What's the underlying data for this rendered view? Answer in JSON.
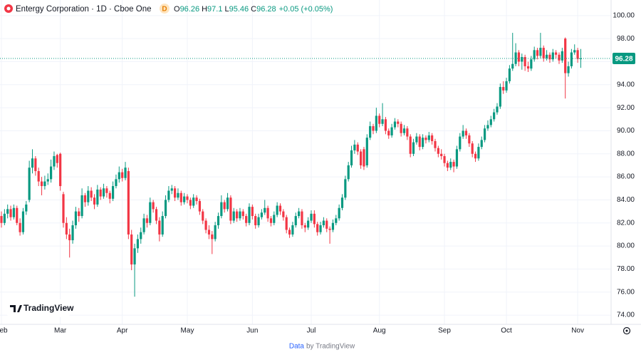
{
  "header": {
    "title": "Entergy Corporation · 1D · Cboe One",
    "badge": "D",
    "labels": [
      "O",
      "H",
      "L",
      "C"
    ],
    "change": "+0.05 (+0.05%)"
  },
  "logo": "TradingView",
  "footer": {
    "link": "Data",
    "text": "by TradingView"
  },
  "chart_data": {
    "type": "candlestick",
    "up_color": "#089981",
    "down_color": "#f23645",
    "grid": true,
    "ylim": [
      73.2,
      101.35
    ],
    "yticks": [
      {
        "value": 74,
        "label": "74.00"
      },
      {
        "value": 76,
        "label": "76.00"
      },
      {
        "value": 78,
        "label": "78.00"
      },
      {
        "value": 80,
        "label": "80.00"
      },
      {
        "value": 82,
        "label": "82.00"
      },
      {
        "value": 84,
        "label": "84.00"
      },
      {
        "value": 86,
        "label": "86.00"
      },
      {
        "value": 88,
        "label": "88.00"
      },
      {
        "value": 90,
        "label": "90.00"
      },
      {
        "value": 92,
        "label": "92.00"
      },
      {
        "value": 94,
        "label": "94.00"
      },
      {
        "value": 96,
        "label": "96.00"
      },
      {
        "value": 98,
        "label": "98.00"
      },
      {
        "value": 100,
        "label": "100.00"
      }
    ],
    "categories": [
      "Feb",
      null,
      null,
      null,
      null,
      null,
      null,
      null,
      null,
      null,
      null,
      null,
      null,
      null,
      null,
      null,
      null,
      null,
      null,
      "Mar",
      null,
      null,
      null,
      null,
      null,
      null,
      null,
      null,
      null,
      null,
      null,
      null,
      null,
      null,
      null,
      null,
      null,
      null,
      null,
      "Apr",
      null,
      null,
      null,
      null,
      null,
      null,
      null,
      null,
      null,
      null,
      null,
      null,
      null,
      null,
      null,
      null,
      null,
      null,
      null,
      null,
      "May",
      null,
      null,
      null,
      null,
      null,
      null,
      null,
      null,
      null,
      null,
      null,
      null,
      null,
      null,
      null,
      null,
      null,
      null,
      null,
      null,
      "Jun",
      null,
      null,
      null,
      null,
      null,
      null,
      null,
      null,
      null,
      null,
      null,
      null,
      null,
      null,
      null,
      null,
      null,
      null,
      "Jul",
      null,
      null,
      null,
      null,
      null,
      null,
      null,
      null,
      null,
      null,
      null,
      null,
      null,
      null,
      null,
      null,
      null,
      null,
      null,
      null,
      null,
      "Aug",
      null,
      null,
      null,
      null,
      null,
      null,
      null,
      null,
      null,
      null,
      null,
      null,
      null,
      null,
      null,
      null,
      null,
      null,
      null,
      null,
      "Sep",
      null,
      null,
      null,
      null,
      null,
      null,
      null,
      null,
      null,
      null,
      null,
      null,
      null,
      null,
      null,
      null,
      null,
      null,
      null,
      "Oct",
      null,
      null,
      null,
      null,
      null,
      null,
      null,
      null,
      null,
      null,
      null,
      null,
      null,
      null,
      null,
      null,
      null,
      null,
      null,
      null,
      null,
      null,
      "Nov",
      null
    ],
    "ohlc": [
      [
        82.6,
        83.0,
        81.6,
        82.0
      ],
      [
        82.0,
        83.2,
        81.8,
        82.8
      ],
      [
        82.8,
        83.6,
        82.4,
        83.2
      ],
      [
        83.2,
        83.5,
        82.2,
        82.5
      ],
      [
        82.5,
        83.6,
        82.3,
        83.3
      ],
      [
        83.3,
        83.5,
        81.8,
        82.0
      ],
      [
        82.0,
        82.4,
        80.9,
        81.2
      ],
      [
        81.2,
        83.3,
        81.0,
        83.0
      ],
      [
        83.0,
        83.9,
        82.7,
        83.6
      ],
      [
        84.0,
        87.4,
        83.8,
        86.8
      ],
      [
        86.8,
        88.4,
        86.3,
        87.6
      ],
      [
        87.6,
        87.8,
        86.1,
        86.5
      ],
      [
        86.5,
        86.8,
        85.2,
        85.6
      ],
      [
        85.6,
        86.0,
        84.4,
        85.2
      ],
      [
        85.2,
        86.1,
        84.9,
        85.6
      ],
      [
        85.6,
        86.3,
        85.3,
        85.8
      ],
      [
        85.8,
        87.5,
        85.5,
        86.9
      ],
      [
        86.9,
        88.2,
        86.6,
        87.8
      ],
      [
        87.9,
        88.0,
        86.8,
        87.2
      ],
      [
        88.0,
        88.1,
        84.8,
        85.2
      ],
      [
        84.5,
        84.7,
        81.6,
        82.0
      ],
      [
        82.0,
        82.5,
        80.6,
        81.0
      ],
      [
        81.0,
        81.5,
        79.0,
        80.5
      ],
      [
        80.5,
        82.2,
        80.2,
        81.8
      ],
      [
        81.8,
        83.4,
        81.5,
        83.0
      ],
      [
        83.0,
        83.3,
        82.1,
        82.6
      ],
      [
        82.6,
        85.0,
        82.4,
        84.4
      ],
      [
        84.4,
        84.6,
        83.4,
        83.8
      ],
      [
        83.8,
        85.2,
        83.5,
        84.8
      ],
      [
        84.8,
        85.1,
        83.9,
        84.2
      ],
      [
        84.2,
        84.5,
        83.2,
        83.6
      ],
      [
        83.6,
        85.3,
        83.4,
        84.9
      ],
      [
        84.9,
        85.1,
        84.0,
        84.3
      ],
      [
        84.3,
        85.4,
        84.1,
        85.0
      ],
      [
        85.0,
        85.2,
        84.2,
        84.6
      ],
      [
        84.6,
        84.8,
        83.7,
        84.1
      ],
      [
        84.1,
        85.6,
        83.9,
        85.2
      ],
      [
        85.2,
        86.2,
        85.0,
        85.8
      ],
      [
        85.8,
        86.9,
        85.5,
        86.4
      ],
      [
        86.4,
        86.7,
        85.6,
        85.9
      ],
      [
        85.9,
        87.3,
        85.7,
        86.8
      ],
      [
        86.5,
        86.8,
        80.6,
        81.0
      ],
      [
        81.0,
        81.4,
        77.9,
        78.4
      ],
      [
        78.4,
        80.2,
        75.6,
        79.8
      ],
      [
        79.8,
        81.0,
        79.4,
        80.6
      ],
      [
        80.6,
        81.6,
        80.2,
        81.2
      ],
      [
        81.2,
        82.8,
        81.0,
        82.4
      ],
      [
        82.4,
        82.7,
        81.6,
        82.0
      ],
      [
        82.0,
        84.2,
        81.8,
        83.8
      ],
      [
        83.8,
        84.0,
        82.9,
        83.2
      ],
      [
        83.2,
        83.4,
        81.9,
        82.2
      ],
      [
        82.2,
        82.5,
        80.4,
        81.0
      ],
      [
        81.0,
        83.0,
        80.8,
        82.6
      ],
      [
        82.6,
        84.4,
        82.4,
        84.0
      ],
      [
        84.0,
        85.2,
        83.8,
        84.8
      ],
      [
        84.8,
        85.3,
        84.5,
        85.0
      ],
      [
        85.0,
        85.2,
        83.9,
        84.2
      ],
      [
        84.2,
        85.0,
        84.0,
        84.6
      ],
      [
        84.6,
        84.8,
        83.5,
        83.8
      ],
      [
        83.8,
        84.6,
        83.6,
        84.3
      ],
      [
        84.3,
        84.5,
        83.7,
        84.0
      ],
      [
        84.0,
        84.2,
        83.2,
        83.5
      ],
      [
        83.5,
        84.5,
        83.3,
        84.2
      ],
      [
        84.2,
        84.4,
        83.6,
        83.9
      ],
      [
        83.9,
        84.1,
        82.7,
        83.0
      ],
      [
        83.0,
        83.2,
        81.9,
        82.2
      ],
      [
        82.2,
        82.4,
        81.1,
        81.4
      ],
      [
        81.4,
        81.8,
        80.6,
        81.0
      ],
      [
        81.0,
        81.3,
        79.3,
        80.6
      ],
      [
        80.6,
        82.1,
        80.4,
        81.8
      ],
      [
        81.8,
        82.9,
        81.5,
        82.6
      ],
      [
        82.6,
        84.4,
        82.4,
        83.8
      ],
      [
        83.8,
        84.0,
        82.9,
        83.2
      ],
      [
        83.2,
        84.6,
        83.0,
        84.2
      ],
      [
        84.2,
        84.4,
        81.9,
        82.2
      ],
      [
        82.2,
        83.3,
        82.0,
        83.0
      ],
      [
        83.0,
        83.2,
        82.1,
        82.4
      ],
      [
        82.4,
        83.3,
        82.2,
        83.0
      ],
      [
        83.0,
        83.2,
        82.3,
        82.6
      ],
      [
        82.6,
        82.8,
        81.7,
        82.0
      ],
      [
        82.0,
        83.7,
        81.8,
        83.4
      ],
      [
        83.4,
        83.6,
        82.3,
        82.6
      ],
      [
        82.6,
        82.8,
        81.5,
        81.8
      ],
      [
        81.8,
        82.8,
        81.6,
        82.5
      ],
      [
        82.5,
        83.2,
        82.3,
        82.9
      ],
      [
        82.9,
        84.0,
        82.7,
        83.3
      ],
      [
        83.3,
        83.5,
        82.1,
        82.4
      ],
      [
        82.4,
        82.6,
        81.7,
        82.0
      ],
      [
        82.0,
        83.0,
        81.8,
        82.7
      ],
      [
        82.7,
        83.8,
        82.5,
        83.5
      ],
      [
        83.5,
        83.7,
        82.7,
        83.0
      ],
      [
        83.0,
        83.2,
        82.2,
        82.5
      ],
      [
        82.5,
        82.7,
        81.1,
        81.4
      ],
      [
        81.4,
        81.6,
        80.7,
        81.0
      ],
      [
        81.0,
        82.1,
        80.8,
        81.8
      ],
      [
        81.8,
        82.9,
        81.6,
        82.6
      ],
      [
        82.6,
        83.3,
        82.4,
        83.0
      ],
      [
        83.0,
        83.2,
        81.5,
        81.8
      ],
      [
        81.8,
        82.0,
        81.2,
        81.6
      ],
      [
        81.6,
        82.5,
        81.4,
        82.2
      ],
      [
        82.2,
        83.1,
        82.0,
        82.8
      ],
      [
        82.8,
        83.1,
        81.6,
        81.9
      ],
      [
        81.9,
        82.1,
        80.9,
        81.2
      ],
      [
        81.2,
        82.1,
        81.0,
        81.8
      ],
      [
        81.8,
        82.5,
        81.6,
        82.2
      ],
      [
        82.2,
        82.4,
        81.2,
        81.5
      ],
      [
        81.5,
        81.7,
        80.2,
        81.4
      ],
      [
        81.4,
        82.3,
        81.2,
        82.0
      ],
      [
        82.0,
        82.7,
        81.8,
        82.4
      ],
      [
        82.4,
        83.6,
        82.2,
        83.3
      ],
      [
        83.3,
        84.5,
        83.1,
        84.2
      ],
      [
        84.2,
        86.1,
        84.0,
        85.8
      ],
      [
        85.8,
        87.3,
        85.6,
        87.0
      ],
      [
        87.0,
        88.7,
        86.8,
        88.3
      ],
      [
        88.3,
        89.2,
        88.0,
        88.8
      ],
      [
        88.8,
        89.0,
        87.9,
        88.2
      ],
      [
        88.2,
        88.4,
        86.7,
        87.0
      ],
      [
        88.4,
        88.6,
        86.6,
        86.9
      ],
      [
        87.0,
        89.7,
        86.8,
        89.4
      ],
      [
        89.4,
        90.8,
        89.2,
        90.4
      ],
      [
        90.4,
        90.6,
        89.7,
        90.0
      ],
      [
        90.0,
        92.0,
        89.8,
        91.3
      ],
      [
        91.3,
        91.5,
        90.3,
        90.6
      ],
      [
        90.6,
        92.4,
        90.4,
        91.0
      ],
      [
        91.0,
        91.2,
        89.7,
        90.0
      ],
      [
        90.0,
        90.2,
        89.3,
        89.6
      ],
      [
        89.6,
        90.6,
        89.4,
        90.3
      ],
      [
        90.3,
        91.1,
        90.1,
        90.8
      ],
      [
        90.8,
        91.0,
        90.3,
        90.6
      ],
      [
        90.6,
        90.8,
        89.5,
        89.8
      ],
      [
        89.8,
        90.5,
        89.6,
        90.2
      ],
      [
        90.2,
        90.4,
        89.2,
        89.5
      ],
      [
        89.5,
        89.7,
        87.7,
        88.0
      ],
      [
        88.0,
        89.3,
        87.8,
        89.0
      ],
      [
        89.0,
        89.8,
        88.8,
        89.5
      ],
      [
        89.5,
        89.7,
        88.3,
        88.6
      ],
      [
        88.6,
        89.7,
        88.4,
        89.4
      ],
      [
        89.4,
        89.6,
        88.9,
        89.2
      ],
      [
        89.2,
        89.9,
        89.0,
        89.6
      ],
      [
        89.6,
        89.8,
        88.8,
        89.1
      ],
      [
        89.1,
        89.3,
        88.2,
        88.5
      ],
      [
        88.5,
        88.7,
        87.7,
        88.0
      ],
      [
        88.0,
        88.4,
        87.5,
        87.8
      ],
      [
        87.8,
        88.0,
        86.9,
        87.2
      ],
      [
        87.2,
        87.4,
        86.5,
        86.8
      ],
      [
        86.8,
        87.6,
        86.6,
        87.3
      ],
      [
        87.3,
        87.5,
        86.4,
        86.9
      ],
      [
        86.9,
        88.7,
        86.7,
        88.4
      ],
      [
        88.4,
        89.8,
        88.2,
        89.5
      ],
      [
        89.5,
        90.5,
        89.3,
        90.0
      ],
      [
        90.0,
        90.2,
        89.3,
        89.6
      ],
      [
        89.6,
        89.8,
        88.6,
        88.9
      ],
      [
        88.9,
        89.1,
        87.7,
        88.0
      ],
      [
        88.0,
        88.2,
        87.3,
        87.6
      ],
      [
        87.6,
        88.9,
        87.4,
        88.6
      ],
      [
        88.6,
        89.5,
        88.4,
        89.2
      ],
      [
        89.2,
        90.5,
        89.0,
        90.2
      ],
      [
        90.2,
        90.9,
        90.0,
        90.5
      ],
      [
        90.5,
        91.3,
        90.3,
        91.0
      ],
      [
        91.0,
        91.9,
        90.8,
        91.6
      ],
      [
        91.6,
        92.4,
        91.4,
        92.1
      ],
      [
        92.1,
        94.1,
        91.9,
        93.8
      ],
      [
        93.8,
        94.3,
        93.2,
        93.5
      ],
      [
        93.5,
        94.6,
        93.3,
        94.3
      ],
      [
        94.3,
        95.7,
        94.1,
        95.4
      ],
      [
        95.4,
        98.5,
        95.2,
        95.8
      ],
      [
        95.8,
        97.6,
        95.6,
        96.8
      ],
      [
        96.8,
        97.0,
        95.6,
        96.0
      ],
      [
        96.0,
        96.7,
        95.3,
        96.4
      ],
      [
        96.4,
        96.6,
        95.2,
        95.6
      ],
      [
        95.6,
        96.0,
        95.1,
        95.4
      ],
      [
        95.4,
        96.5,
        95.2,
        96.2
      ],
      [
        96.2,
        97.3,
        96.0,
        97.0
      ],
      [
        97.0,
        97.2,
        96.2,
        96.5
      ],
      [
        96.5,
        98.5,
        96.3,
        97.2
      ],
      [
        97.2,
        97.4,
        96.0,
        96.3
      ],
      [
        96.3,
        97.0,
        96.1,
        96.6
      ],
      [
        96.6,
        96.8,
        95.9,
        96.2
      ],
      [
        96.2,
        97.1,
        96.0,
        96.8
      ],
      [
        96.8,
        97.0,
        96.3,
        96.6
      ],
      [
        96.6,
        96.8,
        95.8,
        96.1
      ],
      [
        96.1,
        97.2,
        95.9,
        96.9
      ],
      [
        98.0,
        98.1,
        92.8,
        95.0
      ],
      [
        95.0,
        96.0,
        94.7,
        95.6
      ],
      [
        95.6,
        97.1,
        95.4,
        96.8
      ],
      [
        96.8,
        97.5,
        96.6,
        97.0
      ],
      [
        97.0,
        97.2,
        95.9,
        96.23
      ],
      [
        96.26,
        97.1,
        95.46,
        96.28
      ]
    ]
  }
}
